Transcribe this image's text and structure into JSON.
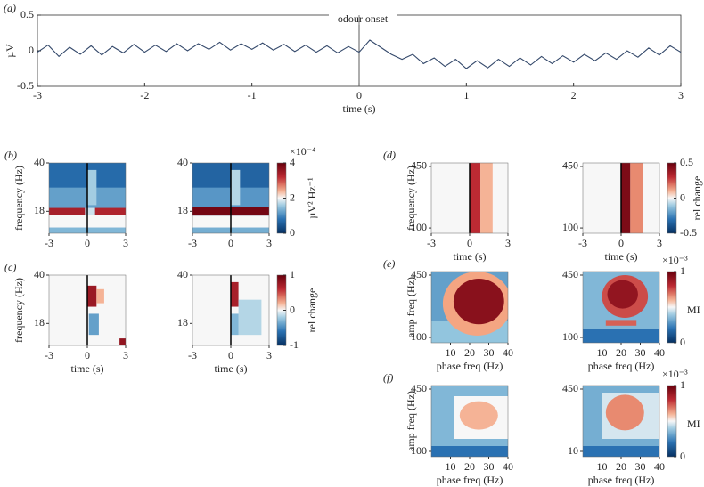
{
  "chart_data": [
    {
      "type": "line",
      "panel_label": "(a)",
      "ylabel": "µV",
      "xlabel": "time (s)",
      "annotation": "odour onset",
      "xlim": [
        -3,
        3
      ],
      "ylim": [
        -0.5,
        0.5
      ],
      "xticks": [
        -3,
        -2,
        -1,
        0,
        1,
        2,
        3
      ],
      "yticks": [
        -0.5,
        0,
        0.5
      ],
      "x": [
        -3,
        -2.9,
        -2.8,
        -2.7,
        -2.6,
        -2.5,
        -2.4,
        -2.3,
        -2.2,
        -2.1,
        -2,
        -1.9,
        -1.8,
        -1.7,
        -1.6,
        -1.5,
        -1.4,
        -1.3,
        -1.2,
        -1.1,
        -1,
        -0.9,
        -0.8,
        -0.7,
        -0.6,
        -0.5,
        -0.4,
        -0.3,
        -0.2,
        -0.1,
        0,
        0.1,
        0.2,
        0.3,
        0.4,
        0.5,
        0.6,
        0.7,
        0.8,
        0.9,
        1,
        1.1,
        1.2,
        1.3,
        1.4,
        1.5,
        1.6,
        1.7,
        1.8,
        1.9,
        2,
        2.1,
        2.2,
        2.3,
        2.4,
        2.5,
        2.6,
        2.7,
        2.8,
        2.9,
        3
      ],
      "series": [
        {
          "color": "#34496b",
          "values": [
            -0.02,
            0.08,
            -0.08,
            0.05,
            -0.05,
            0.07,
            -0.06,
            0.06,
            -0.03,
            0.09,
            -0.02,
            0.08,
            -0.01,
            0.1,
            0,
            0.1,
            0.02,
            0.12,
            0.01,
            0.1,
            0.02,
            0.11,
            0.01,
            0.09,
            -0.01,
            0.08,
            -0.02,
            0.07,
            -0.03,
            0.06,
            -0.02,
            0.15,
            0.05,
            -0.05,
            -0.12,
            -0.05,
            -0.18,
            -0.1,
            -0.22,
            -0.12,
            -0.25,
            -0.14,
            -0.24,
            -0.12,
            -0.22,
            -0.1,
            -0.2,
            -0.08,
            -0.18,
            -0.07,
            -0.16,
            -0.05,
            -0.14,
            -0.03,
            -0.12,
            0,
            -0.09,
            0.04,
            -0.06,
            0.07,
            -0.02
          ]
        }
      ]
    },
    {
      "type": "heatmap",
      "panel_label": "(b)",
      "ylabel": "frequency (Hz)",
      "xlim": [
        -3,
        3
      ],
      "xticks": [
        -3,
        0,
        3
      ],
      "ylim": [
        8,
        40
      ],
      "yticks": [
        18,
        40
      ],
      "colorbar": {
        "clim": [
          0,
          4
        ],
        "ticks": [
          0,
          2,
          4
        ],
        "label": "µV² Hz⁻¹",
        "scale_label": "×10⁻⁴"
      }
    },
    {
      "type": "heatmap",
      "panel_label": "(c)",
      "ylabel": "frequency (Hz)",
      "xlabel": "time (s)",
      "xlim": [
        -3,
        3
      ],
      "xticks": [
        -3,
        0,
        3
      ],
      "ylim": [
        8,
        40
      ],
      "yticks": [
        18,
        40
      ],
      "colorbar": {
        "clim": [
          -1,
          1
        ],
        "ticks": [
          -1,
          0,
          1
        ],
        "label": "rel change"
      }
    },
    {
      "type": "heatmap",
      "panel_label": "(d)",
      "ylabel": "frequency (Hz)",
      "xlabel": "time (s)",
      "xlim": [
        -3,
        3
      ],
      "xticks": [
        -3,
        0,
        3
      ],
      "ylim": [
        70,
        470
      ],
      "yticks": [
        100,
        450
      ],
      "colorbar": {
        "clim": [
          -0.5,
          0.5
        ],
        "ticks": [
          -0.5,
          0,
          0.5
        ],
        "label": "rel change"
      }
    },
    {
      "type": "heatmap",
      "panel_label": "(e)",
      "ylabel": "amp freq (Hz)",
      "xlabel": "phase freq (Hz)",
      "xlim": [
        0,
        40
      ],
      "xticks": [
        10,
        20,
        30,
        40
      ],
      "ylim": [
        70,
        470
      ],
      "yticks": [
        100,
        450
      ],
      "colorbar": {
        "clim": [
          0,
          1
        ],
        "ticks": [
          0,
          1
        ],
        "label": "MI",
        "scale_label": "×10⁻³"
      }
    },
    {
      "type": "heatmap",
      "panel_label": "(f)",
      "ylabel": "amp freq (Hz)",
      "xlabel": "phase freq (Hz)",
      "xlim": [
        0,
        40
      ],
      "xticks": [
        10,
        20,
        30,
        40
      ],
      "ylim": [
        70,
        470
      ],
      "yticks": [
        100,
        450
      ],
      "yticks_2": [
        {
          "value": 100,
          "label": "10"
        },
        450
      ],
      "colorbar": {
        "clim": [
          0,
          1
        ],
        "ticks": [
          0,
          1
        ],
        "label": "MI",
        "scale_label": "×10⁻³"
      }
    }
  ]
}
